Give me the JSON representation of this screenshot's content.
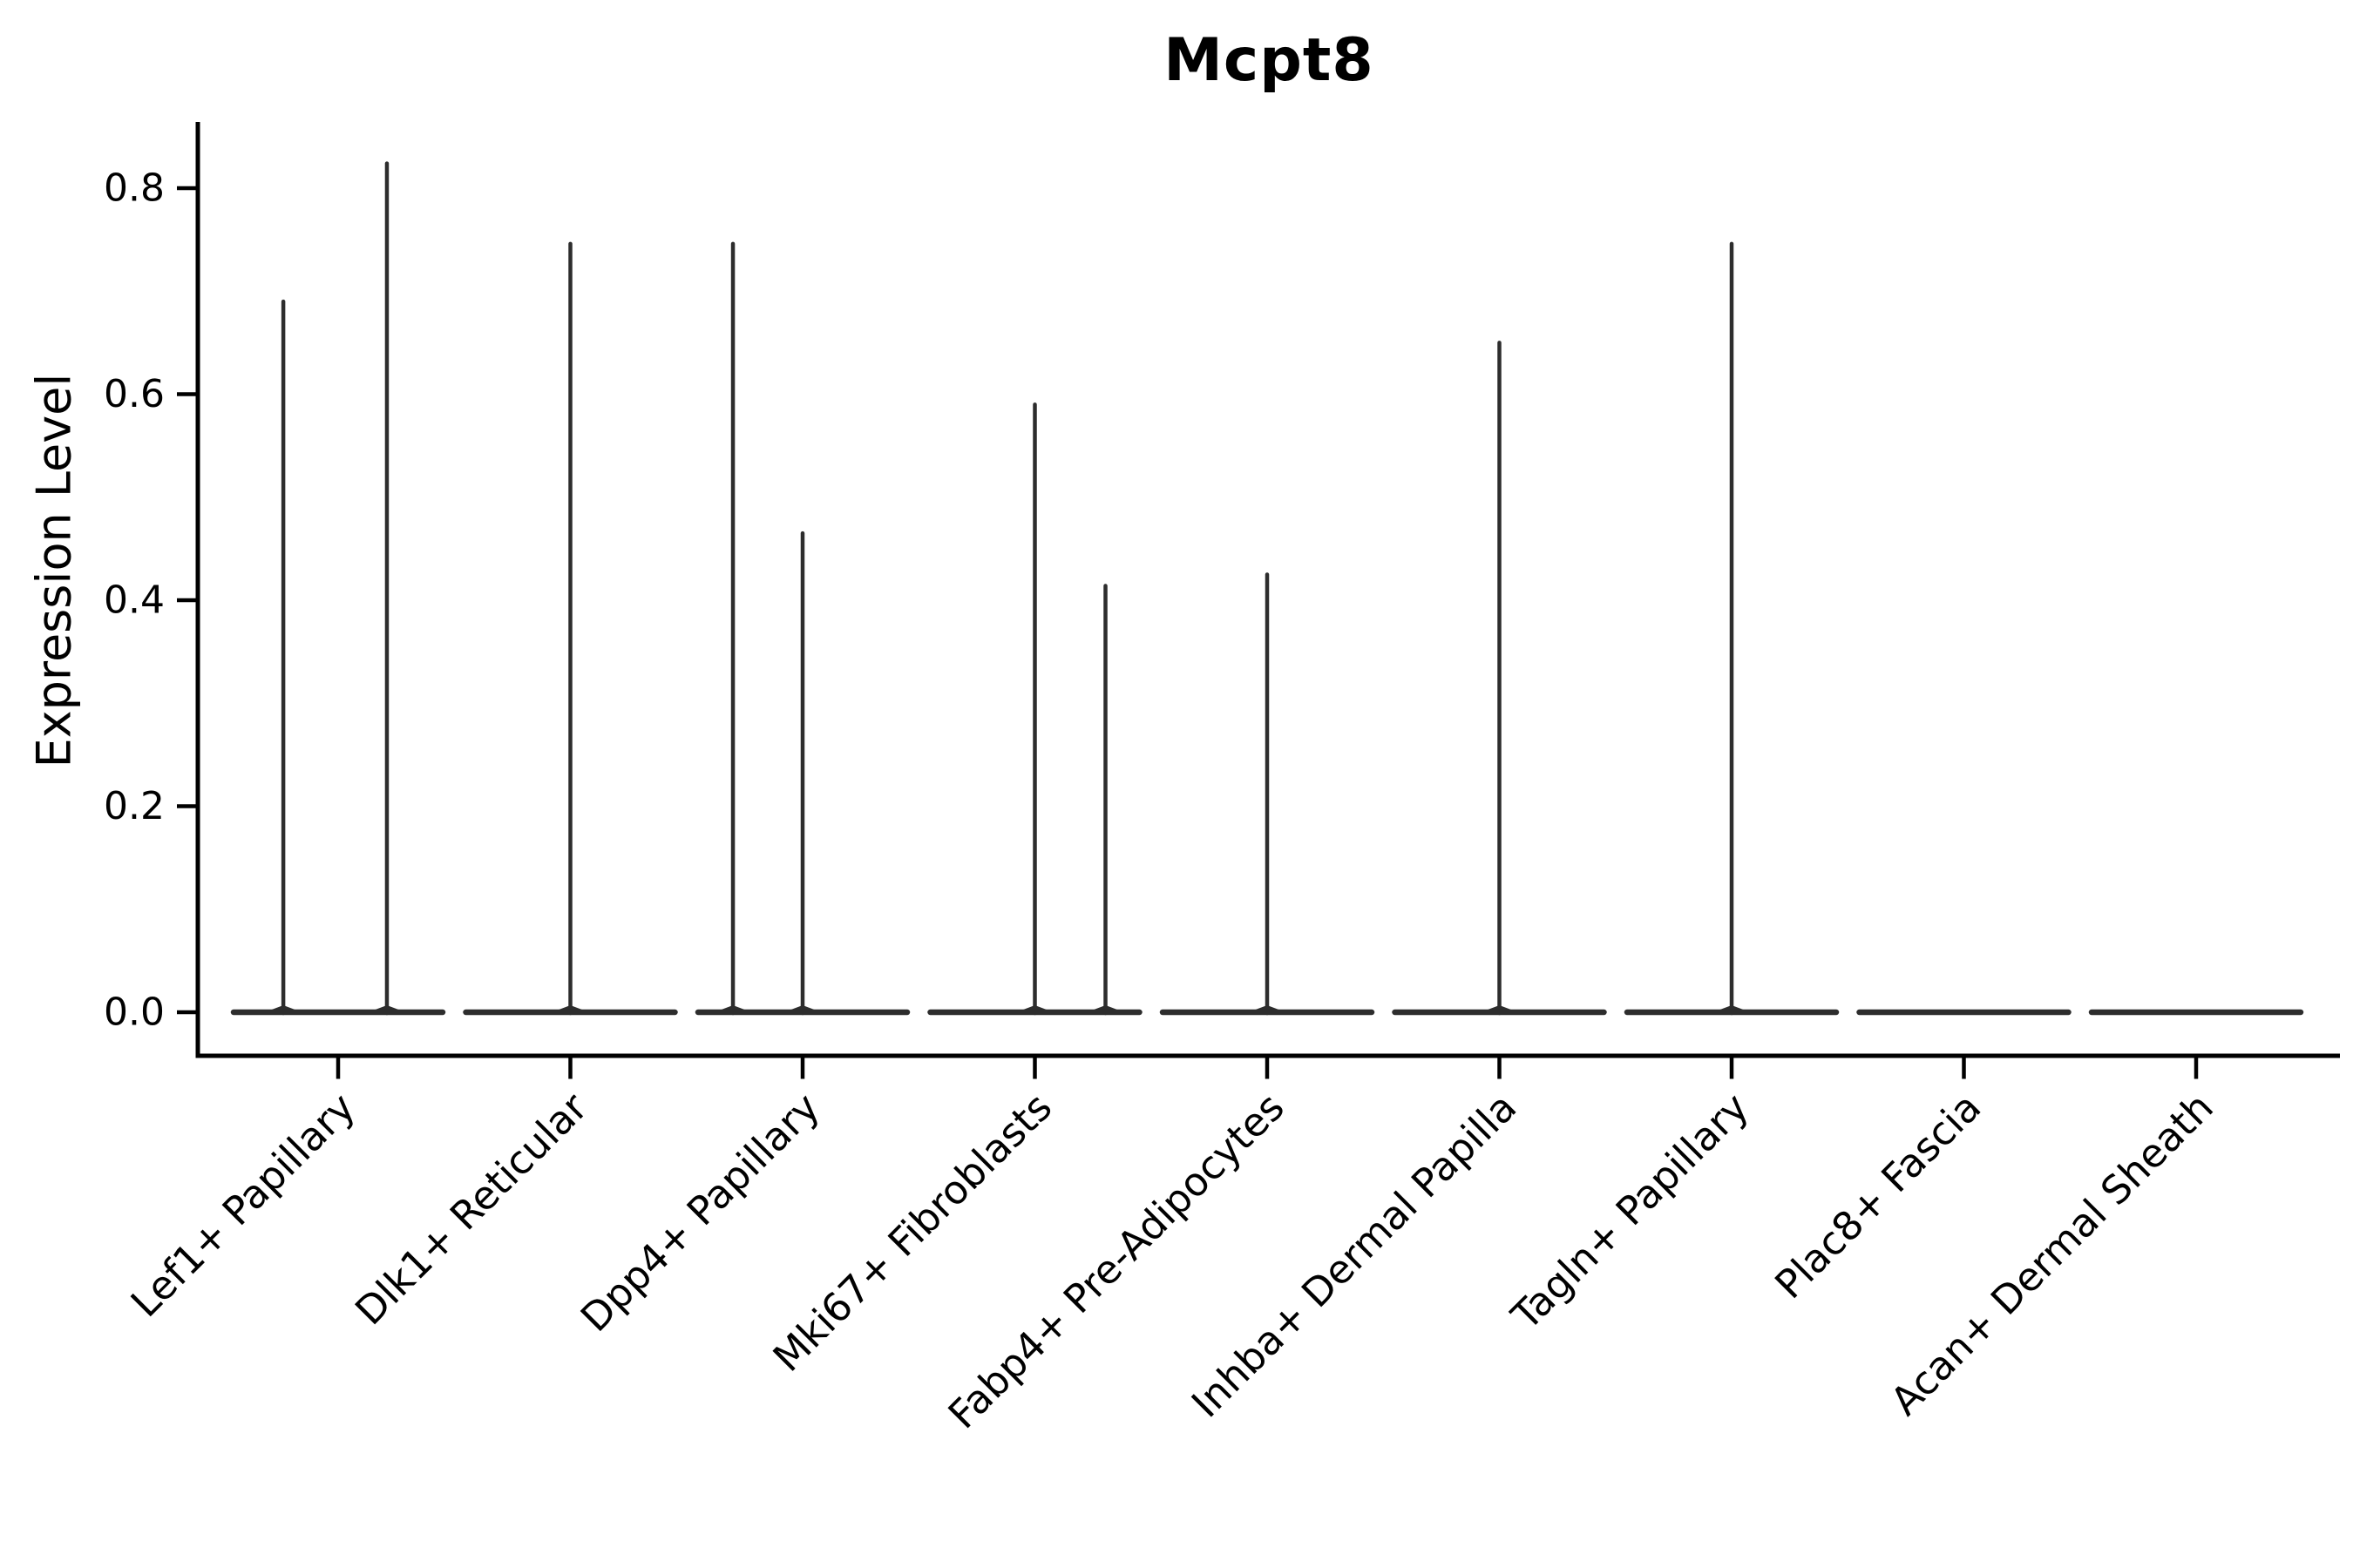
{
  "figure": {
    "title": "Mcpt8",
    "ylabel": "Expression Level",
    "background_color": "#ffffff",
    "axis_color": "#000000",
    "violin_color": "#2d2d2d"
  },
  "chart_data": {
    "type": "violin",
    "title": "Mcpt8",
    "xlabel": "",
    "ylabel": "Expression Level",
    "ylim": [
      -0.042,
      0.864
    ],
    "yticks": [
      "0.0",
      "0.2",
      "0.4",
      "0.6",
      "0.8"
    ],
    "ytick_values": [
      0.0,
      0.2,
      0.4,
      0.6,
      0.8
    ],
    "grid": false,
    "legend_position": "none",
    "x_tick_rotation_degrees": 45,
    "categories": [
      "Lef1+ Papillary",
      "Dlk1+ Reticular",
      "Dpp4+ Papillary",
      "Mki67+ Fibroblasts",
      "Fabp4+ Pre-Adipocytes",
      "Inhba+ Dermal Papilla",
      "Tagln+ Papillary",
      "Plac8+ Fascia",
      "Acan+ Dermal Sheath"
    ],
    "violins": [
      {
        "category": "Lef1+ Papillary",
        "baseline_value": 0.0,
        "spikes": [
          {
            "offset_frac": -0.236,
            "max_value": 0.69
          },
          {
            "offset_frac": 0.21,
            "max_value": 0.824
          }
        ]
      },
      {
        "category": "Dlk1+ Reticular",
        "baseline_value": 0.0,
        "spikes": [
          {
            "offset_frac": 0.0,
            "max_value": 0.746
          }
        ]
      },
      {
        "category": "Dpp4+ Papillary",
        "baseline_value": 0.0,
        "spikes": [
          {
            "offset_frac": -0.3,
            "max_value": 0.746
          },
          {
            "offset_frac": 0.0,
            "max_value": 0.465
          }
        ]
      },
      {
        "category": "Mki67+ Fibroblasts",
        "baseline_value": 0.0,
        "spikes": [
          {
            "offset_frac": 0.0,
            "max_value": 0.59
          },
          {
            "offset_frac": 0.304,
            "max_value": 0.414
          }
        ]
      },
      {
        "category": "Fabp4+ Pre-Adipocytes",
        "baseline_value": 0.0,
        "spikes": [
          {
            "offset_frac": 0.0,
            "max_value": 0.425
          }
        ]
      },
      {
        "category": "Inhba+ Dermal Papilla",
        "baseline_value": 0.0,
        "spikes": [
          {
            "offset_frac": 0.0,
            "max_value": 0.65
          }
        ]
      },
      {
        "category": "Tagln+ Papillary",
        "baseline_value": 0.0,
        "spikes": [
          {
            "offset_frac": 0.0,
            "max_value": 0.746
          }
        ]
      },
      {
        "category": "Plac8+ Fascia",
        "baseline_value": 0.0,
        "spikes": []
      },
      {
        "category": "Acan+ Dermal Sheath",
        "baseline_value": 0.0,
        "spikes": []
      }
    ]
  }
}
